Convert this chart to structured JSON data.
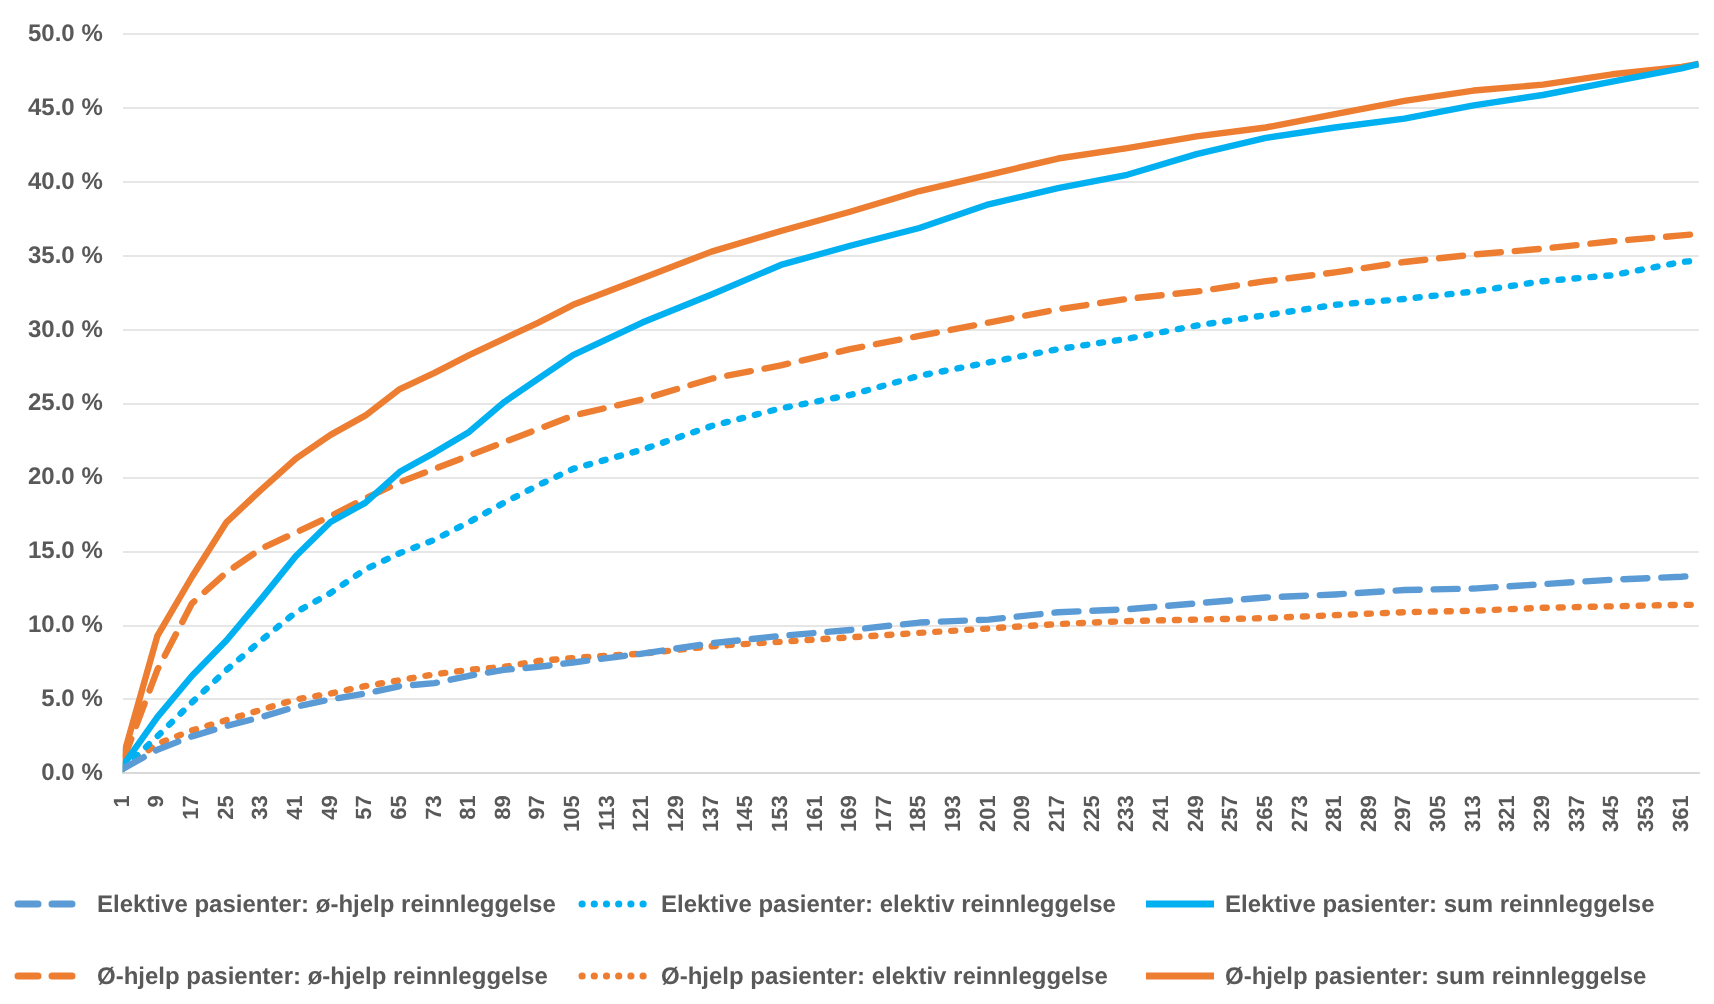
{
  "chart_data": {
    "type": "line",
    "x": [
      1,
      9,
      17,
      25,
      33,
      41,
      49,
      57,
      65,
      73,
      81,
      89,
      97,
      105,
      121,
      137,
      153,
      169,
      185,
      201,
      217,
      233,
      249,
      265,
      281,
      297,
      313,
      329,
      345,
      361,
      365
    ],
    "series": [
      {
        "name": "Elektive pasienter: ø-hjelp reinnleggelse",
        "color": "#5b9bd5",
        "line_style": "dashed",
        "values": [
          0.3,
          1.6,
          2.5,
          3.2,
          3.8,
          4.5,
          5.0,
          5.4,
          5.9,
          6.1,
          6.6,
          7.0,
          7.2,
          7.5,
          8.1,
          8.8,
          9.3,
          9.7,
          10.2,
          10.4,
          10.9,
          11.1,
          11.5,
          11.9,
          12.1,
          12.4,
          12.5,
          12.8,
          13.1,
          13.3,
          13.4
        ]
      },
      {
        "name": "Elektive pasienter: elektiv reinnleggelse",
        "color": "#00b0f0",
        "line_style": "dotted",
        "values": [
          0.3,
          2.5,
          4.8,
          7.0,
          9.0,
          10.9,
          12.2,
          13.8,
          14.9,
          15.8,
          17.0,
          18.3,
          19.5,
          20.6,
          21.9,
          23.5,
          24.7,
          25.6,
          26.9,
          27.8,
          28.7,
          29.4,
          30.3,
          31.0,
          31.7,
          32.1,
          32.6,
          33.3,
          33.7,
          34.6,
          34.7
        ]
      },
      {
        "name": "Elektive pasienter: sum reinnleggelse",
        "color": "#00b0f0",
        "line_style": "solid",
        "values": [
          0.5,
          3.8,
          6.6,
          9.0,
          11.8,
          14.7,
          17.0,
          18.3,
          20.4,
          21.7,
          23.1,
          25.1,
          26.7,
          28.3,
          30.5,
          32.4,
          34.4,
          35.7,
          36.9,
          38.5,
          39.6,
          40.5,
          41.9,
          43.0,
          43.7,
          44.3,
          45.2,
          45.9,
          46.8,
          47.7,
          48.0
        ]
      },
      {
        "name": "Ø-hjelp pasienter: ø-hjelp reinnleggelse",
        "color": "#ed7d31",
        "line_style": "dashed",
        "values": [
          0.8,
          7.0,
          11.5,
          13.6,
          15.2,
          16.3,
          17.4,
          18.6,
          19.7,
          20.6,
          21.5,
          22.4,
          23.3,
          24.2,
          25.3,
          26.7,
          27.6,
          28.7,
          29.6,
          30.5,
          31.4,
          32.1,
          32.6,
          33.3,
          33.9,
          34.6,
          35.1,
          35.5,
          36.0,
          36.4,
          36.5
        ]
      },
      {
        "name": "Ø-hjelp pasienter: elektiv reinnleggelse",
        "color": "#ed7d31",
        "line_style": "dotted",
        "values": [
          0.3,
          2.0,
          2.9,
          3.6,
          4.3,
          5.0,
          5.4,
          5.9,
          6.3,
          6.7,
          7.0,
          7.2,
          7.6,
          7.8,
          8.1,
          8.6,
          8.9,
          9.2,
          9.5,
          9.8,
          10.1,
          10.3,
          10.4,
          10.5,
          10.7,
          10.9,
          11.0,
          11.2,
          11.3,
          11.4,
          11.4
        ]
      },
      {
        "name": "Ø-hjelp pasienter: sum reinnleggelse",
        "color": "#ed7d31",
        "line_style": "solid",
        "values": [
          1.0,
          9.3,
          13.3,
          17.0,
          19.2,
          21.3,
          22.9,
          24.2,
          26.0,
          27.1,
          28.3,
          29.4,
          30.5,
          31.7,
          33.5,
          35.3,
          36.7,
          38.0,
          39.4,
          40.5,
          41.6,
          42.3,
          43.1,
          43.7,
          44.6,
          45.5,
          46.2,
          46.6,
          47.3,
          47.8,
          48.0
        ]
      }
    ],
    "xlim": [
      1,
      365
    ],
    "xticks": [
      1,
      9,
      17,
      25,
      33,
      41,
      49,
      57,
      65,
      73,
      81,
      89,
      97,
      105,
      113,
      121,
      129,
      137,
      145,
      153,
      161,
      169,
      177,
      185,
      193,
      201,
      209,
      217,
      225,
      233,
      241,
      249,
      257,
      265,
      273,
      281,
      289,
      297,
      305,
      313,
      321,
      329,
      337,
      345,
      353,
      361
    ],
    "ylim": [
      0,
      50
    ],
    "yticks": [
      {
        "value": 0,
        "label": "0.0 %"
      },
      {
        "value": 5,
        "label": "5.0 %"
      },
      {
        "value": 10,
        "label": "10.0 %"
      },
      {
        "value": 15,
        "label": "15.0 %"
      },
      {
        "value": 20,
        "label": "20.0 %"
      },
      {
        "value": 25,
        "label": "25.0 %"
      },
      {
        "value": 30,
        "label": "30.0 %"
      },
      {
        "value": 35,
        "label": "35.0 %"
      },
      {
        "value": 40,
        "label": "40.0 %"
      },
      {
        "value": 45,
        "label": "45.0 %"
      },
      {
        "value": 50,
        "label": "50.0 %"
      }
    ],
    "grid": "y",
    "legend": "bottom",
    "marker": "none"
  }
}
